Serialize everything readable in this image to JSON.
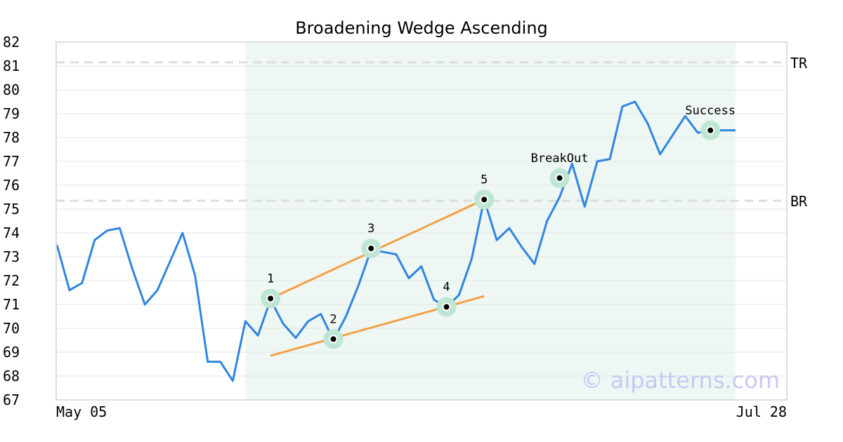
{
  "chart_data": {
    "type": "line",
    "title": "Broadening Wedge Ascending",
    "xlabel": "",
    "ylabel": "",
    "ylim": [
      67,
      82
    ],
    "y_ticks": [
      67,
      68,
      69,
      70,
      71,
      72,
      73,
      74,
      75,
      76,
      77,
      78,
      79,
      80,
      81,
      82
    ],
    "x_ticks": [
      "May 05",
      "Jul 28"
    ],
    "grid": true,
    "colors": {
      "line": "#2f86e0",
      "trend": "#f4a045",
      "highlight": "#eef7f3",
      "marker_ring": "#bfe6d3",
      "reference": "#dddddd"
    },
    "series": [
      {
        "values": [
          73.5,
          71.6,
          71.9,
          73.7,
          74.1,
          74.2,
          72.5,
          71.0,
          71.6,
          72.8,
          74.0,
          72.2,
          68.6,
          68.6,
          67.8,
          70.3,
          69.7,
          71.2,
          70.2,
          69.6,
          70.3,
          70.6,
          69.5,
          70.5,
          71.8,
          73.3,
          73.2,
          73.1,
          72.1,
          72.6,
          71.2,
          70.9,
          71.4,
          72.9,
          75.4,
          73.7,
          74.2,
          73.4,
          72.7,
          74.5,
          75.5,
          76.9,
          75.1,
          77.0,
          77.1,
          79.3,
          79.5,
          78.6,
          77.3,
          78.1,
          78.9,
          78.2,
          78.3,
          78.3,
          78.3
        ]
      }
    ],
    "highlight_range": [
      15,
      54
    ],
    "reference_lines": [
      {
        "label": "TR",
        "value": 81.15
      },
      {
        "label": "BR",
        "value": 75.35
      }
    ],
    "points": [
      {
        "label": "1",
        "index": 17,
        "value": 71.25
      },
      {
        "label": "2",
        "index": 22,
        "value": 69.55
      },
      {
        "label": "3",
        "index": 25,
        "value": 73.35
      },
      {
        "label": "4",
        "index": 31,
        "value": 70.9
      },
      {
        "label": "5",
        "index": 34,
        "value": 75.4
      },
      {
        "label": "BreakOut",
        "index": 40,
        "value": 76.3
      },
      {
        "label": "Success",
        "index": 52,
        "value": 78.3
      }
    ],
    "trend_lines": [
      {
        "from": [
          17,
          71.25
        ],
        "to": [
          34,
          75.4
        ]
      },
      {
        "from": [
          17,
          68.85
        ],
        "to": [
          34,
          71.35
        ]
      }
    ],
    "watermark": "© aipatterns.com"
  }
}
